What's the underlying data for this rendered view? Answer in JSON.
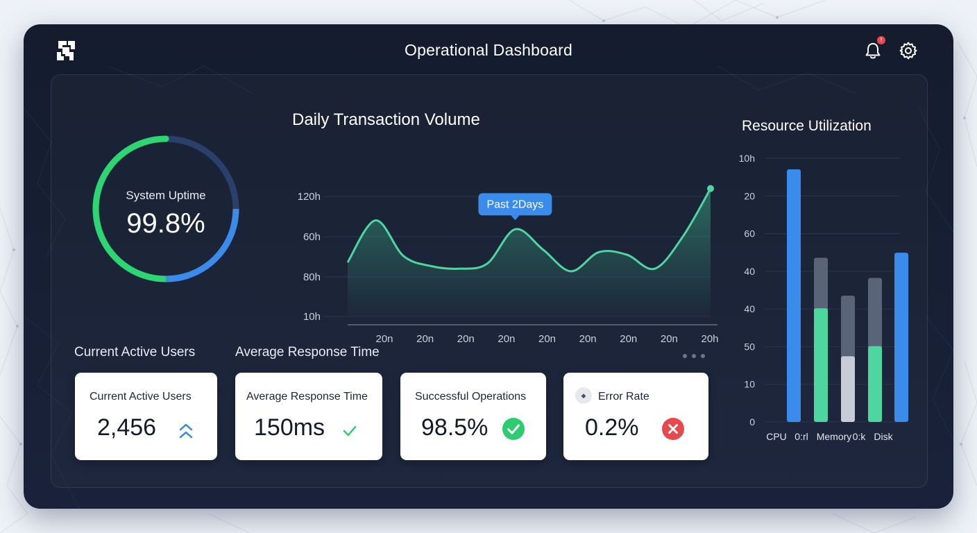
{
  "header": {
    "title": "Operational Dashboard",
    "notification_count": "!",
    "icons": [
      "logo-icon",
      "bell-icon",
      "gear-icon"
    ]
  },
  "colors": {
    "frame_bg": "#141c2e",
    "accent_green": "#2ed573",
    "accent_blue": "#3b8beb",
    "chart_teal": "#4fd6a0",
    "error_red": "#e5484d",
    "success_green": "#2dcc70"
  },
  "uptime": {
    "label": "System Uptime",
    "value": "99.8%",
    "green_fraction": 0.55,
    "blue_fraction": 0.25
  },
  "transaction_chart": {
    "title": "Daily Transaction Volume",
    "tooltip": "Past 2Days",
    "chart_data": {
      "type": "area",
      "y_tick_labels": [
        "120h",
        "60h",
        "80h",
        "10h"
      ],
      "x_tick_labels": [
        "20n",
        "20n",
        "20n",
        "20n",
        "20n",
        "20n",
        "20n",
        "20n",
        "20h"
      ],
      "values": [
        42,
        75,
        47,
        39,
        37,
        41,
        68,
        52,
        35,
        50,
        48,
        37,
        62,
        100
      ],
      "y_range": [
        0,
        120
      ]
    }
  },
  "resource_chart": {
    "title": "Resource Utilization",
    "chart_data": {
      "type": "bar",
      "y_tick_labels": [
        "10h",
        "20",
        "60",
        "40",
        "40",
        "50",
        "10",
        "0"
      ],
      "x_tick_labels": [
        "CPU",
        "0:rl",
        "Memory",
        "0:k",
        "Disk"
      ],
      "bars": [
        {
          "top": 100,
          "stack": 0,
          "color": "#3b8beb"
        },
        {
          "top": 45,
          "stack": 65,
          "color": "#4fd6a0"
        },
        {
          "top": 26,
          "stack": 50,
          "color": "#c7ccd6"
        },
        {
          "top": 30,
          "stack": 57,
          "color": "#4fd6a0"
        },
        {
          "top": 67,
          "stack": 0,
          "color": "#3b8beb"
        }
      ],
      "y_range": [
        0,
        100
      ]
    }
  },
  "sections": {
    "active_users_label": "Current Active Users",
    "response_time_label": "Average Response Time"
  },
  "cards": [
    {
      "label": "Current Active Users",
      "value": "2,456",
      "icon": "double-chevron-up-icon"
    },
    {
      "label": "Average Response Time",
      "value": "150ms",
      "icon": "check-icon"
    },
    {
      "label": "Successful Operations",
      "value": "98.5%",
      "icon": "check-circle-icon"
    },
    {
      "label": "Error Rate",
      "value": "0.2%",
      "icon": "x-circle-icon"
    }
  ]
}
